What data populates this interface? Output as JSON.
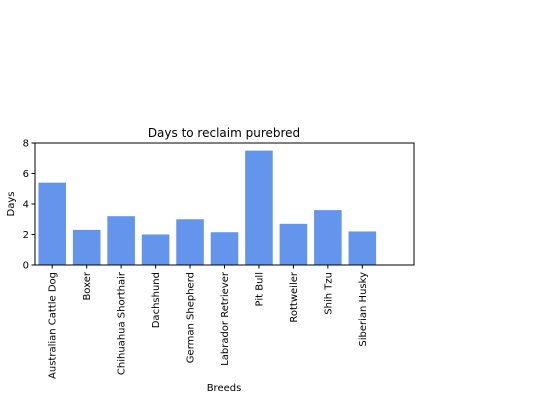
{
  "chart_data": {
    "type": "bar",
    "title": "Days to reclaim purebred",
    "xlabel": "Breeds",
    "ylabel": "Days",
    "ylim": [
      0,
      8
    ],
    "yticks": [
      0,
      2,
      4,
      6,
      8
    ],
    "categories": [
      "Australian Cattle Dog",
      "Boxer",
      "Chihuahua Shorthair",
      "Dachshund",
      "German Shepherd",
      "Labrador Retriever",
      "Pit Bull",
      "Rottweiler",
      "Shih Tzu",
      "Siberian Husky"
    ],
    "values": [
      5.4,
      2.3,
      3.2,
      2.0,
      3.0,
      2.15,
      7.5,
      2.7,
      3.6,
      2.2
    ],
    "bar_color": "#6495ED",
    "grid": false,
    "legend": "none"
  }
}
